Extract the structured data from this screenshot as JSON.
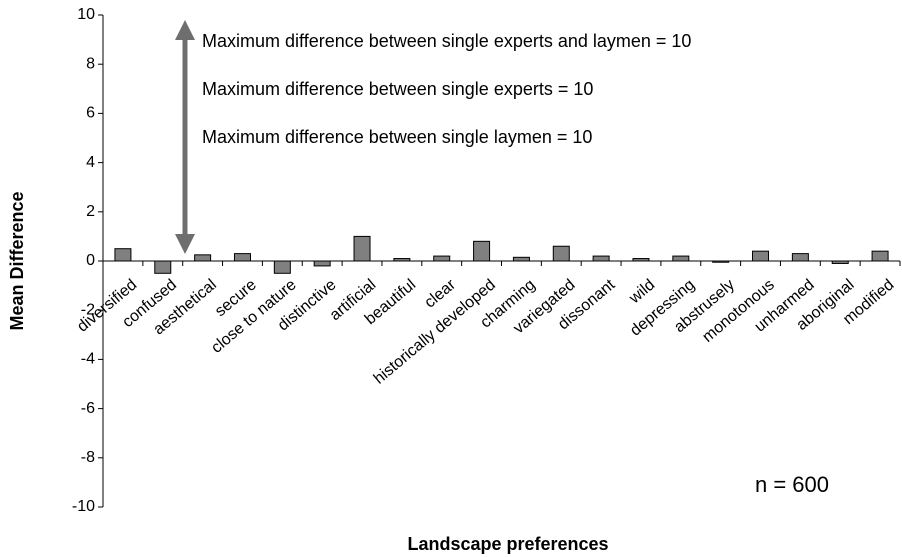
{
  "chart_data": {
    "type": "bar",
    "x_label": "Landscape preferences",
    "y_label": "Mean Difference",
    "annotations": [
      "Maximum difference between single experts and laymen = 10",
      "Maximum difference between single experts = 10",
      "Maximum difference between single laymen = 10",
      "n = 600"
    ],
    "categories": [
      "diversified",
      "confused",
      "aesthetical",
      "secure",
      "close to nature",
      "distinctive",
      "artificial",
      "beautiful",
      "clear",
      "historically developed",
      "charming",
      "variegated",
      "dissonant",
      "wild",
      "depressing",
      "abstrusely",
      "monotonous",
      "unharmed",
      "aboriginal",
      "modified"
    ],
    "values": [
      0.5,
      -0.5,
      0.25,
      0.3,
      -0.5,
      -0.2,
      1.0,
      0.1,
      0.2,
      0.8,
      0.15,
      0.6,
      0.2,
      0.1,
      0.2,
      -0.05,
      0.4,
      0.3,
      -0.1,
      0.4
    ],
    "color": "#808080",
    "ylim": [
      -10,
      10
    ],
    "yticks": [
      -10,
      -8,
      -6,
      -4,
      -2,
      0,
      2,
      4,
      6,
      8,
      10
    ],
    "grid": false
  }
}
